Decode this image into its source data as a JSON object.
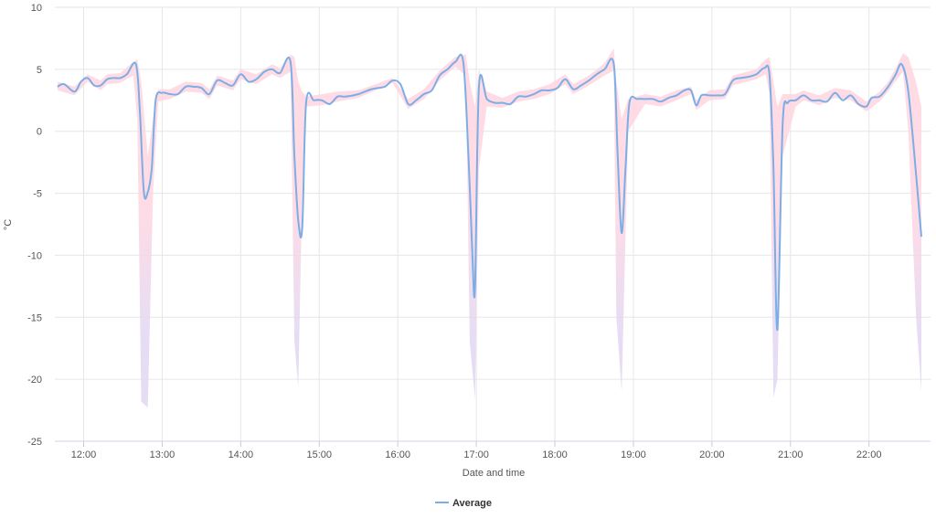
{
  "chart_data": {
    "type": "area",
    "title": "",
    "xlabel": "Date and time",
    "ylabel": "°C",
    "ylim": [
      -25,
      10
    ],
    "yticks": [
      10,
      5,
      0,
      -5,
      -10,
      -15,
      -20,
      -25
    ],
    "x_range": [
      "11:38",
      "22:47"
    ],
    "xticks": [
      "12:00",
      "13:00",
      "14:00",
      "15:00",
      "16:00",
      "17:00",
      "18:00",
      "19:00",
      "20:00",
      "21:00",
      "22:00"
    ],
    "grid": true,
    "legend": {
      "position": "bottom-center",
      "entries": [
        "Average"
      ]
    },
    "colors": {
      "average_line": "#7caee6",
      "range_upper": "#ffd6e0",
      "range_lower": "#e2d7f2",
      "grid": "#e6e6e6"
    },
    "series": [
      {
        "name": "Average",
        "points": [
          [
            "11:40",
            3.6
          ],
          [
            "11:45",
            3.8
          ],
          [
            "11:53",
            3.2
          ],
          [
            "11:58",
            4.0
          ],
          [
            "12:03",
            4.3
          ],
          [
            "12:08",
            3.7
          ],
          [
            "12:13",
            3.7
          ],
          [
            "12:18",
            4.2
          ],
          [
            "12:23",
            4.3
          ],
          [
            "12:28",
            4.3
          ],
          [
            "12:33",
            4.6
          ],
          [
            "12:40",
            5.4
          ],
          [
            "12:43",
            1.5
          ],
          [
            "12:46",
            -4.9
          ],
          [
            "12:49",
            -4.9
          ],
          [
            "12:52",
            -3.0
          ],
          [
            "12:55",
            2.5
          ],
          [
            "13:00",
            3.1
          ],
          [
            "13:06",
            3.0
          ],
          [
            "13:12",
            3.0
          ],
          [
            "13:18",
            3.6
          ],
          [
            "13:24",
            3.6
          ],
          [
            "13:30",
            3.5
          ],
          [
            "13:36",
            3.0
          ],
          [
            "13:42",
            4.1
          ],
          [
            "13:48",
            3.9
          ],
          [
            "13:54",
            3.7
          ],
          [
            "14:00",
            4.6
          ],
          [
            "14:06",
            4.0
          ],
          [
            "14:12",
            4.2
          ],
          [
            "14:18",
            4.8
          ],
          [
            "14:24",
            5.0
          ],
          [
            "14:30",
            4.7
          ],
          [
            "14:38",
            5.6
          ],
          [
            "14:41",
            -2.0
          ],
          [
            "14:44",
            -7.2
          ],
          [
            "14:47",
            -7.8
          ],
          [
            "14:50",
            2.3
          ],
          [
            "14:56",
            2.5
          ],
          [
            "15:02",
            2.5
          ],
          [
            "15:08",
            2.2
          ],
          [
            "15:14",
            2.8
          ],
          [
            "15:20",
            2.8
          ],
          [
            "15:30",
            3.0
          ],
          [
            "15:40",
            3.4
          ],
          [
            "15:50",
            3.6
          ],
          [
            "15:56",
            4.1
          ],
          [
            "16:02",
            3.8
          ],
          [
            "16:08",
            2.2
          ],
          [
            "16:14",
            2.5
          ],
          [
            "16:20",
            3.0
          ],
          [
            "16:26",
            3.3
          ],
          [
            "16:32",
            4.5
          ],
          [
            "16:38",
            5.0
          ],
          [
            "16:44",
            5.6
          ],
          [
            "16:50",
            5.6
          ],
          [
            "16:54",
            -2.0
          ],
          [
            "16:57",
            -10.0
          ],
          [
            "16:59",
            -12.6
          ],
          [
            "17:02",
            3.6
          ],
          [
            "17:08",
            2.6
          ],
          [
            "17:14",
            2.3
          ],
          [
            "17:20",
            2.3
          ],
          [
            "17:26",
            2.2
          ],
          [
            "17:32",
            2.8
          ],
          [
            "17:38",
            2.8
          ],
          [
            "17:44",
            3.0
          ],
          [
            "17:50",
            3.3
          ],
          [
            "17:56",
            3.3
          ],
          [
            "18:02",
            3.5
          ],
          [
            "18:08",
            4.2
          ],
          [
            "18:14",
            3.4
          ],
          [
            "18:20",
            3.7
          ],
          [
            "18:26",
            4.1
          ],
          [
            "18:32",
            4.6
          ],
          [
            "18:38",
            5.0
          ],
          [
            "18:45",
            5.4
          ],
          [
            "18:48",
            -2.0
          ],
          [
            "18:51",
            -8.2
          ],
          [
            "18:54",
            -3.0
          ],
          [
            "18:57",
            2.3
          ],
          [
            "19:03",
            2.6
          ],
          [
            "19:09",
            2.6
          ],
          [
            "19:15",
            2.6
          ],
          [
            "19:21",
            2.4
          ],
          [
            "19:27",
            2.7
          ],
          [
            "19:33",
            2.9
          ],
          [
            "19:39",
            3.3
          ],
          [
            "19:44",
            3.3
          ],
          [
            "19:48",
            2.1
          ],
          [
            "19:52",
            2.9
          ],
          [
            "19:58",
            2.9
          ],
          [
            "20:04",
            2.9
          ],
          [
            "20:10",
            3.0
          ],
          [
            "20:16",
            4.1
          ],
          [
            "20:22",
            4.3
          ],
          [
            "20:28",
            4.4
          ],
          [
            "20:34",
            4.6
          ],
          [
            "20:40",
            5.1
          ],
          [
            "20:44",
            4.5
          ],
          [
            "20:47",
            -3.0
          ],
          [
            "20:50",
            -16.0
          ],
          [
            "20:54",
            0.5
          ],
          [
            "20:58",
            2.3
          ],
          [
            "21:04",
            2.5
          ],
          [
            "21:10",
            2.9
          ],
          [
            "21:16",
            2.5
          ],
          [
            "21:22",
            2.5
          ],
          [
            "21:28",
            2.4
          ],
          [
            "21:34",
            3.1
          ],
          [
            "21:40",
            2.5
          ],
          [
            "21:46",
            2.9
          ],
          [
            "21:52",
            2.2
          ],
          [
            "21:58",
            2.0
          ],
          [
            "22:02",
            2.7
          ],
          [
            "22:08",
            2.8
          ],
          [
            "22:14",
            3.5
          ],
          [
            "22:20",
            4.5
          ],
          [
            "22:25",
            5.4
          ],
          [
            "22:30",
            3.2
          ],
          [
            "22:36",
            -3.5
          ],
          [
            "22:40",
            -8.5
          ]
        ]
      }
    ],
    "range_band": {
      "upper": [
        [
          "11:40",
          4.0
        ],
        [
          "11:53",
          3.6
        ],
        [
          "12:03",
          4.6
        ],
        [
          "12:13",
          4.1
        ],
        [
          "12:18",
          4.6
        ],
        [
          "12:28",
          4.7
        ],
        [
          "12:38",
          5.6
        ],
        [
          "12:41",
          5.8
        ],
        [
          "12:44",
          4.0
        ],
        [
          "12:49",
          -2.0
        ],
        [
          "12:53",
          1.0
        ],
        [
          "12:57",
          3.4
        ],
        [
          "13:06",
          3.4
        ],
        [
          "13:18",
          4.0
        ],
        [
          "13:30",
          3.9
        ],
        [
          "13:36",
          3.4
        ],
        [
          "13:42",
          4.5
        ],
        [
          "13:54",
          4.1
        ],
        [
          "14:00",
          5.0
        ],
        [
          "14:12",
          4.6
        ],
        [
          "14:24",
          5.4
        ],
        [
          "14:30",
          5.1
        ],
        [
          "14:38",
          6.2
        ],
        [
          "14:41",
          6.0
        ],
        [
          "14:44",
          4.0
        ],
        [
          "14:47",
          3.2
        ],
        [
          "14:50",
          2.8
        ],
        [
          "15:02",
          3.0
        ],
        [
          "15:14",
          3.2
        ],
        [
          "15:30",
          3.3
        ],
        [
          "15:56",
          4.3
        ],
        [
          "16:08",
          2.6
        ],
        [
          "16:20",
          3.4
        ],
        [
          "16:32",
          4.9
        ],
        [
          "16:44",
          6.0
        ],
        [
          "16:52",
          6.2
        ],
        [
          "16:55",
          4.0
        ],
        [
          "16:59",
          2.0
        ],
        [
          "17:02",
          5.0
        ],
        [
          "17:08",
          3.2
        ],
        [
          "17:20",
          2.7
        ],
        [
          "17:32",
          3.2
        ],
        [
          "17:44",
          3.4
        ],
        [
          "17:56",
          3.8
        ],
        [
          "18:08",
          4.6
        ],
        [
          "18:14",
          3.8
        ],
        [
          "18:26",
          4.5
        ],
        [
          "18:38",
          5.5
        ],
        [
          "18:45",
          6.7
        ],
        [
          "18:47",
          4.0
        ],
        [
          "18:51",
          1.0
        ],
        [
          "18:56",
          2.6
        ],
        [
          "19:09",
          3.0
        ],
        [
          "19:21",
          2.8
        ],
        [
          "19:33",
          3.3
        ],
        [
          "19:44",
          3.6
        ],
        [
          "19:48",
          2.5
        ],
        [
          "19:58",
          3.3
        ],
        [
          "20:10",
          3.4
        ],
        [
          "20:16",
          4.5
        ],
        [
          "20:34",
          5.0
        ],
        [
          "20:41",
          5.8
        ],
        [
          "20:44",
          6.0
        ],
        [
          "20:47",
          4.0
        ],
        [
          "20:50",
          2.0
        ],
        [
          "20:54",
          3.0
        ],
        [
          "21:04",
          3.0
        ],
        [
          "21:10",
          3.3
        ],
        [
          "21:22",
          2.9
        ],
        [
          "21:34",
          3.5
        ],
        [
          "21:46",
          3.3
        ],
        [
          "21:58",
          2.4
        ],
        [
          "22:08",
          3.2
        ],
        [
          "22:14",
          3.9
        ],
        [
          "22:20",
          5.0
        ],
        [
          "22:26",
          6.3
        ],
        [
          "22:30",
          6.0
        ],
        [
          "22:36",
          4.0
        ],
        [
          "22:40",
          2.0
        ]
      ],
      "lower": [
        [
          "11:40",
          3.3
        ],
        [
          "11:53",
          2.9
        ],
        [
          "12:03",
          4.0
        ],
        [
          "12:13",
          3.3
        ],
        [
          "12:18",
          3.8
        ],
        [
          "12:28",
          3.9
        ],
        [
          "12:38",
          4.5
        ],
        [
          "12:41",
          1.0
        ],
        [
          "12:44",
          -21.8
        ],
        [
          "12:49",
          -22.3
        ],
        [
          "12:53",
          -5.0
        ],
        [
          "12:57",
          2.4
        ],
        [
          "13:06",
          2.6
        ],
        [
          "13:18",
          3.2
        ],
        [
          "13:30",
          3.1
        ],
        [
          "13:36",
          2.6
        ],
        [
          "13:42",
          3.7
        ],
        [
          "13:54",
          3.3
        ],
        [
          "14:00",
          4.2
        ],
        [
          "14:12",
          3.8
        ],
        [
          "14:24",
          4.6
        ],
        [
          "14:30",
          4.3
        ],
        [
          "14:38",
          4.8
        ],
        [
          "14:41",
          -17.0
        ],
        [
          "14:44",
          -20.6
        ],
        [
          "14:47",
          -5.0
        ],
        [
          "14:50",
          2.0
        ],
        [
          "15:02",
          2.1
        ],
        [
          "15:14",
          2.4
        ],
        [
          "15:30",
          2.7
        ],
        [
          "15:56",
          3.9
        ],
        [
          "16:08",
          1.8
        ],
        [
          "16:20",
          2.6
        ],
        [
          "16:32",
          4.1
        ],
        [
          "16:44",
          5.2
        ],
        [
          "16:52",
          4.5
        ],
        [
          "16:55",
          -17.0
        ],
        [
          "16:59",
          -21.6
        ],
        [
          "17:02",
          -3.0
        ],
        [
          "17:08",
          2.0
        ],
        [
          "17:20",
          1.9
        ],
        [
          "17:32",
          2.4
        ],
        [
          "17:44",
          2.6
        ],
        [
          "17:56",
          3.0
        ],
        [
          "18:08",
          3.8
        ],
        [
          "18:14",
          3.0
        ],
        [
          "18:26",
          3.7
        ],
        [
          "18:38",
          4.5
        ],
        [
          "18:45",
          4.9
        ],
        [
          "18:47",
          -15.0
        ],
        [
          "18:51",
          -21.0
        ],
        [
          "18:56",
          0.0
        ],
        [
          "19:09",
          2.2
        ],
        [
          "19:21",
          2.0
        ],
        [
          "19:33",
          2.5
        ],
        [
          "19:44",
          3.0
        ],
        [
          "19:48",
          1.7
        ],
        [
          "19:58",
          2.5
        ],
        [
          "20:10",
          2.6
        ],
        [
          "20:16",
          3.7
        ],
        [
          "20:34",
          4.2
        ],
        [
          "20:41",
          4.6
        ],
        [
          "20:44",
          3.0
        ],
        [
          "20:47",
          -21.5
        ],
        [
          "20:50",
          -20.0
        ],
        [
          "20:54",
          -2.0
        ],
        [
          "21:04",
          2.0
        ],
        [
          "21:10",
          2.5
        ],
        [
          "21:22",
          2.1
        ],
        [
          "21:34",
          2.7
        ],
        [
          "21:46",
          2.5
        ],
        [
          "21:58",
          1.6
        ],
        [
          "22:08",
          2.4
        ],
        [
          "22:14",
          3.1
        ],
        [
          "22:20",
          4.0
        ],
        [
          "22:26",
          4.8
        ],
        [
          "22:30",
          0.0
        ],
        [
          "22:36",
          -15.0
        ],
        [
          "22:40",
          -21.0
        ]
      ]
    }
  }
}
